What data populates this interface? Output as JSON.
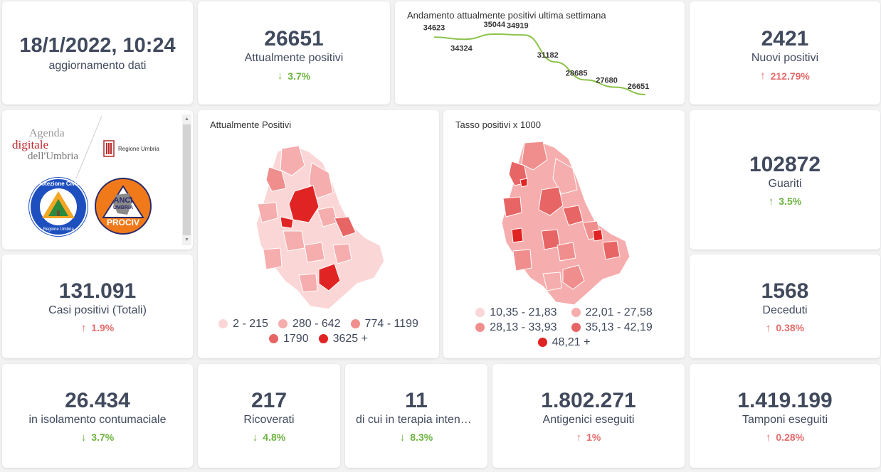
{
  "update": {
    "datetime": "18/1/2022, 10:24",
    "label": "aggiornamento dati"
  },
  "attualmente_positivi": {
    "value": "26651",
    "label": "Attualmente positivi",
    "change": "3.7%",
    "direction": "down"
  },
  "trend": {
    "title": "Andamento attualmente positivi ultima settimana",
    "line_color": "#8bc34a"
  },
  "chart_data": {
    "type": "line",
    "title": "Andamento attualmente positivi ultima settimana",
    "x": [
      1,
      2,
      3,
      4,
      5,
      6,
      7,
      8
    ],
    "series": [
      {
        "values": [
          34623,
          34324,
          35044,
          34919,
          31182,
          28685,
          27680,
          26651
        ]
      }
    ],
    "data_labels": [
      "34623",
      "34324",
      "35044",
      "34919",
      "31182",
      "28685",
      "27680",
      "26651"
    ],
    "grid": false,
    "axes": false
  },
  "nuovi_positivi": {
    "value": "2421",
    "label": "Nuovi positivi",
    "change": "212.79%",
    "direction": "up"
  },
  "logos": {
    "agenda_line1": "Agenda",
    "agenda_line2": "digitale",
    "agenda_line3": "dell'Umbria",
    "regione": "Regione Umbria",
    "protezione_top": "Protezione Civile",
    "protezione_bottom": "Regione Umbria",
    "anci_top": "ANCI",
    "anci_mid": "UMBRIA",
    "anci_bottom": "PROCIV"
  },
  "map_positivi": {
    "title": "Attualmente Positivi",
    "legend": [
      {
        "label": "2 - 215",
        "color": "#fbd6d6"
      },
      {
        "label": "280 - 642",
        "color": "#f6adad"
      },
      {
        "label": "774 - 1199",
        "color": "#f08e8e"
      },
      {
        "label": "1790",
        "color": "#e76565"
      },
      {
        "label": "3625 +",
        "color": "#e02424"
      }
    ]
  },
  "map_tasso": {
    "title": "Tasso positivi x 1000",
    "legend": [
      {
        "label": "10,35 - 21,83",
        "color": "#fbd6d6"
      },
      {
        "label": "22,01 - 27,58",
        "color": "#f6adad"
      },
      {
        "label": "28,13 - 33,93",
        "color": "#f08e8e"
      },
      {
        "label": "35,13 - 42,19",
        "color": "#e76565"
      },
      {
        "label": "48,21 +",
        "color": "#e02424"
      }
    ]
  },
  "guariti": {
    "value": "102872",
    "label": "Guariti",
    "change": "3.5%",
    "direction": "down"
  },
  "casi_totali": {
    "value": "131.091",
    "label": "Casi positivi (Totali)",
    "change": "1.9%",
    "direction": "up"
  },
  "deceduti": {
    "value": "1568",
    "label": "Deceduti",
    "change": "0.38%",
    "direction": "up"
  },
  "isolamento": {
    "value": "26.434",
    "label": "in isolamento contumaciale",
    "change": "3.7%",
    "direction": "down"
  },
  "ricoverati": {
    "value": "217",
    "label": "Ricoverati",
    "change": "4.8%",
    "direction": "down"
  },
  "terapia": {
    "value": "11",
    "label": "di cui in terapia intensiva",
    "change": "8.3%",
    "direction": "down"
  },
  "antigenici": {
    "value": "1.802.271",
    "label": "Antigenici eseguiti",
    "change": "1%",
    "direction": "up"
  },
  "tamponi": {
    "value": "1.419.199",
    "label": "Tamponi eseguiti",
    "change": "0.28%",
    "direction": "up"
  },
  "colors": {
    "up": "#e46b6b",
    "down": "#6db33f",
    "text": "#414a5d"
  }
}
